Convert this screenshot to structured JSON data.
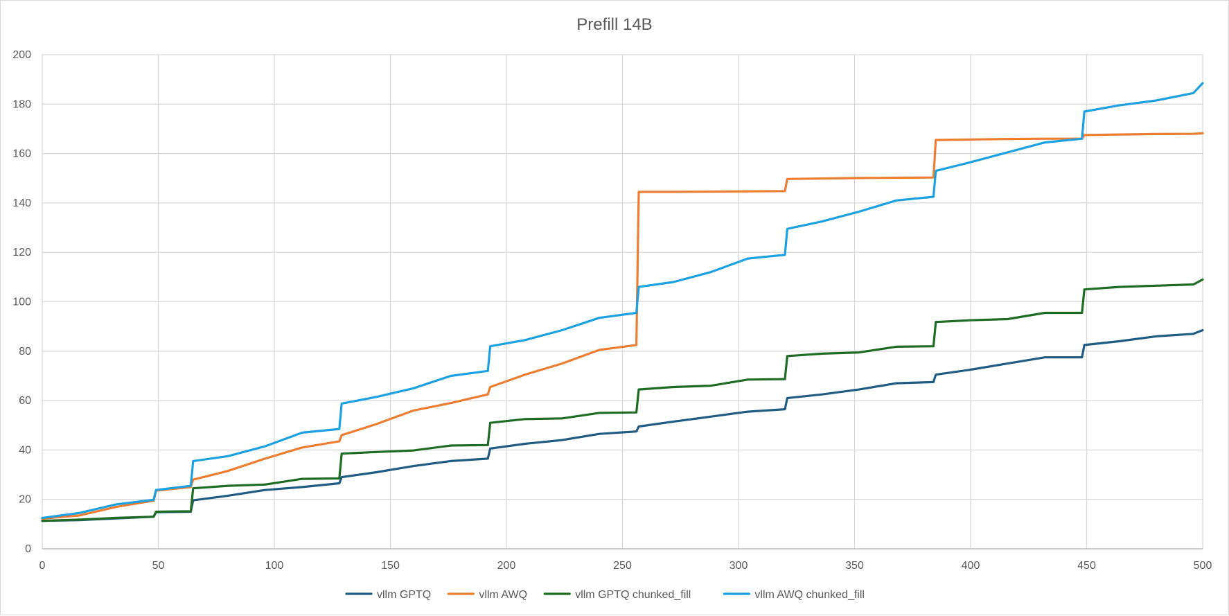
{
  "chart_data": {
    "type": "line",
    "title": "Prefill 14B",
    "xlabel": "",
    "ylabel": "",
    "xlim": [
      0,
      500
    ],
    "ylim": [
      0,
      200
    ],
    "x_ticks": [
      0,
      50,
      100,
      150,
      200,
      250,
      300,
      350,
      400,
      450,
      500
    ],
    "y_ticks": [
      0,
      20,
      40,
      60,
      80,
      100,
      120,
      140,
      160,
      180,
      200
    ],
    "grid": true,
    "legend_position": "bottom",
    "x": [
      0,
      16,
      32,
      48,
      49,
      64,
      65,
      80,
      96,
      112,
      128,
      129,
      144,
      160,
      176,
      192,
      193,
      208,
      224,
      240,
      256,
      257,
      272,
      288,
      304,
      320,
      321,
      336,
      352,
      368,
      384,
      385,
      400,
      416,
      432,
      448,
      449,
      464,
      480,
      496,
      500
    ],
    "series": [
      {
        "name": "vllm GPTQ",
        "color": "#1F5B82",
        "values": [
          11.3,
          11.6,
          12.3,
          13.0,
          14.8,
          15.0,
          19.6,
          21.5,
          23.8,
          25.0,
          26.5,
          29.0,
          31.0,
          33.5,
          35.5,
          36.5,
          40.6,
          42.5,
          44.0,
          46.5,
          47.5,
          49.5,
          51.5,
          53.5,
          55.5,
          56.5,
          61.0,
          62.5,
          64.5,
          67.0,
          67.5,
          70.5,
          72.5,
          75.0,
          77.5,
          77.5,
          82.5,
          84.0,
          86.0,
          87.0,
          88.5
        ]
      },
      {
        "name": "vllm AWQ",
        "color": "#ED7D31",
        "values": [
          12.2,
          13.5,
          17.0,
          19.5,
          23.5,
          25.0,
          28.0,
          31.5,
          36.5,
          41.0,
          43.5,
          46.0,
          50.5,
          56.0,
          59.0,
          62.5,
          65.5,
          70.5,
          75.0,
          80.5,
          82.5,
          144.5,
          144.5,
          144.6,
          144.7,
          144.8,
          149.7,
          149.9,
          150.1,
          150.2,
          150.3,
          165.5,
          165.7,
          165.9,
          166.0,
          166.0,
          167.5,
          167.7,
          167.9,
          168.0,
          168.2
        ]
      },
      {
        "name": "vllm GPTQ chunked_fill",
        "color": "#1E6B24",
        "values": [
          11.3,
          11.8,
          12.5,
          13.0,
          15.0,
          15.2,
          24.5,
          25.5,
          26.0,
          28.3,
          28.5,
          38.5,
          39.2,
          39.8,
          41.8,
          42.0,
          51.0,
          52.5,
          52.8,
          55.0,
          55.2,
          64.5,
          65.5,
          66.0,
          68.5,
          68.7,
          78.0,
          79.0,
          79.5,
          81.8,
          82.0,
          91.8,
          92.5,
          93.0,
          95.5,
          95.5,
          105.0,
          106.0,
          106.5,
          107.0,
          109.0
        ]
      },
      {
        "name": "vllm AWQ chunked_fill",
        "color": "#1BA1E2",
        "values": [
          12.5,
          14.5,
          18.0,
          19.8,
          23.8,
          25.5,
          35.5,
          37.5,
          41.5,
          47.0,
          48.5,
          58.8,
          61.5,
          65.0,
          70.0,
          72.0,
          82.0,
          84.5,
          88.5,
          93.5,
          95.5,
          106.0,
          108.0,
          112.0,
          117.5,
          119.0,
          129.5,
          132.5,
          136.5,
          141.0,
          142.5,
          153.0,
          156.5,
          160.5,
          164.5,
          166.0,
          177.0,
          179.5,
          181.5,
          184.5,
          188.5
        ]
      }
    ]
  }
}
